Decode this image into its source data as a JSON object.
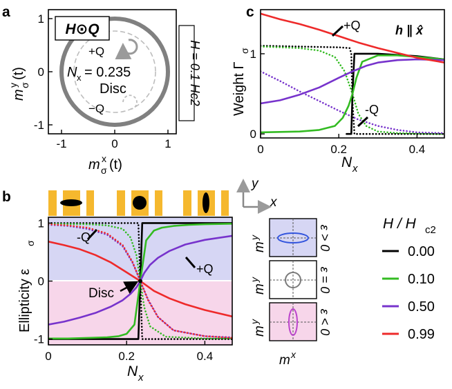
{
  "panel_labels": [
    "a",
    "b",
    "c"
  ],
  "legend": {
    "title": "H / H",
    "title_sub": "c2",
    "entries": [
      {
        "label": "0.00",
        "color": "#000000"
      },
      {
        "label": "0.10",
        "color": "#33bb22"
      },
      {
        "label": "0.50",
        "color": "#7733cc"
      },
      {
        "label": "0.99",
        "color": "#ee2a2a"
      }
    ]
  },
  "chart_data": [
    {
      "panel": "a",
      "type": "scatter",
      "title": "H⊙Q",
      "xlabel": "m",
      "xlabel_sup": "x",
      "xlabel_rest": "σ",
      "xlabel_tail": "(t)",
      "ylabel": "m",
      "ylabel_sup": "y",
      "ylabel_rest": "σ",
      "ylabel_tail": "(t)",
      "xlim": [
        -1.2,
        1.2
      ],
      "ylim": [
        -1.2,
        1.2
      ],
      "xticks": [
        "-1",
        "0",
        "1"
      ],
      "yticks": [
        "-1",
        "0",
        "1"
      ],
      "orbits": [
        {
          "name": "Disc",
          "radius": 1.0,
          "color": "#808080"
        },
        {
          "name": "+Q",
          "radius": 0.76,
          "color": "#bdbdbd",
          "dashed": true
        },
        {
          "name": "-Q",
          "radius": 0.76,
          "color": "#bdbdbd",
          "dashed": true
        }
      ],
      "annotations": {
        "plus_q": "+Q",
        "minus_q": "−Q",
        "nx_label": "N",
        "nx_sub": "x",
        "nx_value": "= 0.235",
        "disc": "Disc",
        "field_label": "H = 0.1 Hc2"
      }
    },
    {
      "panel": "b",
      "type": "line",
      "xlabel": "N",
      "xlabel_sub": "x",
      "ylabel": "Ellipticity ε",
      "ylabel_sub": "σ",
      "xlim": [
        0,
        0.47
      ],
      "ylim": [
        -1.1,
        1.1
      ],
      "xticks": [
        0,
        0.2,
        0.4
      ],
      "xtick_labels": [
        "0",
        "0.2",
        "0.4"
      ],
      "yticks": [
        -1,
        0,
        1
      ],
      "ytick_labels": [
        "-1",
        "0",
        "1"
      ],
      "crossing_point": [
        0.235,
        0
      ],
      "annotations": {
        "minus_q": "-Q",
        "plus_q": "+Q",
        "disc": "Disc",
        "axis_y": "y",
        "axis_x": "x"
      },
      "series": [
        {
          "name": "0.00",
          "color": "#000000",
          "style": "solid",
          "x": [
            0,
            0.05,
            0.1,
            0.15,
            0.2,
            0.23,
            0.235,
            0.24,
            0.3,
            0.35,
            0.4,
            0.47
          ],
          "y": [
            -1,
            -1,
            -1,
            -1,
            -1,
            -1,
            0,
            1,
            1,
            1,
            1,
            1
          ]
        },
        {
          "name": "0.10",
          "color": "#33bb22",
          "style": "solid",
          "x": [
            0,
            0.05,
            0.1,
            0.15,
            0.18,
            0.2,
            0.22,
            0.235,
            0.25,
            0.27,
            0.29,
            0.32,
            0.36,
            0.4,
            0.47
          ],
          "y": [
            -0.99,
            -0.99,
            -0.98,
            -0.97,
            -0.95,
            -0.91,
            -0.75,
            0,
            0.7,
            0.87,
            0.92,
            0.95,
            0.97,
            0.98,
            0.99
          ]
        },
        {
          "name": "0.50",
          "color": "#7733cc",
          "style": "solid",
          "x": [
            0,
            0.04,
            0.08,
            0.12,
            0.16,
            0.19,
            0.21,
            0.225,
            0.235,
            0.245,
            0.26,
            0.28,
            0.31,
            0.35,
            0.4,
            0.47
          ],
          "y": [
            -0.75,
            -0.7,
            -0.63,
            -0.55,
            -0.44,
            -0.33,
            -0.22,
            -0.11,
            0,
            0.14,
            0.28,
            0.4,
            0.52,
            0.63,
            0.71,
            0.78
          ]
        },
        {
          "name": "0.99",
          "color": "#ee2a2a",
          "style": "solid",
          "x": [
            0,
            0.04,
            0.08,
            0.12,
            0.16,
            0.2,
            0.235,
            0.27,
            0.31,
            0.35,
            0.4,
            0.47
          ],
          "y": [
            0.68,
            0.62,
            0.55,
            0.45,
            0.32,
            0.15,
            0,
            -0.17,
            -0.3,
            -0.4,
            -0.5,
            -0.61
          ]
        },
        {
          "name": "0.00 -Q",
          "color": "#000000",
          "style": "dotted",
          "x": [
            0,
            0.1,
            0.2,
            0.23,
            0.235,
            0.24,
            0.3,
            0.4,
            0.47
          ],
          "y": [
            1,
            1,
            1,
            1,
            0,
            -1,
            -1,
            -1,
            -1
          ]
        },
        {
          "name": "0.10 -Q",
          "color": "#33bb22",
          "style": "dotted",
          "x": [
            0,
            0.1,
            0.15,
            0.19,
            0.21,
            0.225,
            0.235,
            0.245,
            0.26,
            0.3,
            0.4,
            0.47
          ],
          "y": [
            0.99,
            0.98,
            0.96,
            0.9,
            0.75,
            0.45,
            0,
            -0.45,
            -0.78,
            -0.96,
            -0.99,
            -0.99
          ]
        },
        {
          "name": "0.50 -Q",
          "color": "#7733cc",
          "style": "dotted",
          "x": [
            0,
            0.05,
            0.1,
            0.15,
            0.19,
            0.215,
            0.235,
            0.255,
            0.28,
            0.32,
            0.4,
            0.47
          ],
          "y": [
            0.97,
            0.95,
            0.9,
            0.8,
            0.6,
            0.32,
            0,
            -0.32,
            -0.62,
            -0.85,
            -0.95,
            -0.97
          ]
        },
        {
          "name": "0.99 -Q",
          "color": "#ee2a2a",
          "style": "dotted",
          "x": [
            0,
            0.05,
            0.1,
            0.15,
            0.19,
            0.215,
            0.235,
            0.255,
            0.28,
            0.32,
            0.4,
            0.47
          ],
          "y": [
            0.98,
            0.96,
            0.92,
            0.82,
            0.62,
            0.33,
            0,
            -0.33,
            -0.62,
            -0.85,
            -0.95,
            -0.98
          ]
        }
      ]
    },
    {
      "panel": "c",
      "type": "line",
      "xlabel": "N",
      "xlabel_sub": "x",
      "ylabel": "Weight Γ",
      "ylabel_sub": "σ",
      "xlim": [
        0,
        0.47
      ],
      "ylim": [
        -0.05,
        1.55
      ],
      "xticks": [
        0,
        0.2,
        0.4
      ],
      "xtick_labels": [
        "0",
        "0.2",
        "0.4"
      ],
      "yticks": [
        0,
        1
      ],
      "ytick_labels": [
        "0",
        "1"
      ],
      "annotations": {
        "plus_q": "+Q",
        "minus_q": "-Q",
        "field_dir": "h ∥ x̂"
      },
      "series": [
        {
          "name": "0.00 +Q",
          "color": "#000000",
          "style": "solid",
          "x": [
            0.22,
            0.232,
            0.235,
            0.24,
            0.3,
            0.4,
            0.47
          ],
          "y": [
            0,
            0,
            0.5,
            1,
            1,
            0.97,
            0.93
          ]
        },
        {
          "name": "0.10 +Q",
          "color": "#33bb22",
          "style": "solid",
          "x": [
            0,
            0.1,
            0.15,
            0.19,
            0.21,
            0.225,
            0.235,
            0.245,
            0.26,
            0.3,
            0.35,
            0.4,
            0.47
          ],
          "y": [
            0.02,
            0.03,
            0.05,
            0.1,
            0.2,
            0.35,
            0.5,
            0.7,
            0.9,
            0.98,
            0.98,
            0.96,
            0.93
          ]
        },
        {
          "name": "0.50 +Q",
          "color": "#7733cc",
          "style": "solid",
          "x": [
            0,
            0.05,
            0.1,
            0.15,
            0.2,
            0.235,
            0.27,
            0.3,
            0.35,
            0.4,
            0.47
          ],
          "y": [
            0.38,
            0.42,
            0.49,
            0.58,
            0.7,
            0.78,
            0.85,
            0.89,
            0.92,
            0.93,
            0.92
          ]
        },
        {
          "name": "0.99 +Q",
          "color": "#ee2a2a",
          "style": "solid",
          "x": [
            0,
            0.05,
            0.1,
            0.15,
            0.2,
            0.25,
            0.3,
            0.35,
            0.4,
            0.47
          ],
          "y": [
            1.5,
            1.43,
            1.37,
            1.3,
            1.22,
            1.14,
            1.07,
            1.01,
            0.95,
            0.89
          ]
        },
        {
          "name": "0.00 -Q",
          "color": "#000000",
          "style": "dotted",
          "x": [
            0,
            0.1,
            0.2,
            0.228,
            0.232,
            0.235,
            0.24,
            0.3,
            0.47
          ],
          "y": [
            1.1,
            1.09,
            1.08,
            1.07,
            1.0,
            0.4,
            0,
            0,
            0
          ]
        },
        {
          "name": "0.10 -Q",
          "color": "#33bb22",
          "style": "dotted",
          "x": [
            0,
            0.1,
            0.15,
            0.19,
            0.215,
            0.235,
            0.25,
            0.27,
            0.3,
            0.35,
            0.47
          ],
          "y": [
            1.09,
            1.07,
            1.04,
            0.96,
            0.78,
            0.5,
            0.25,
            0.1,
            0.03,
            0.01,
            0
          ]
        },
        {
          "name": "0.50 -Q",
          "color": "#7733cc",
          "style": "dotted",
          "x": [
            0,
            0.05,
            0.1,
            0.15,
            0.2,
            0.25,
            0.3,
            0.35,
            0.4,
            0.47
          ],
          "y": [
            0.78,
            0.66,
            0.53,
            0.41,
            0.29,
            0.18,
            0.1,
            0.05,
            0.02,
            0.01
          ]
        }
      ]
    }
  ]
}
